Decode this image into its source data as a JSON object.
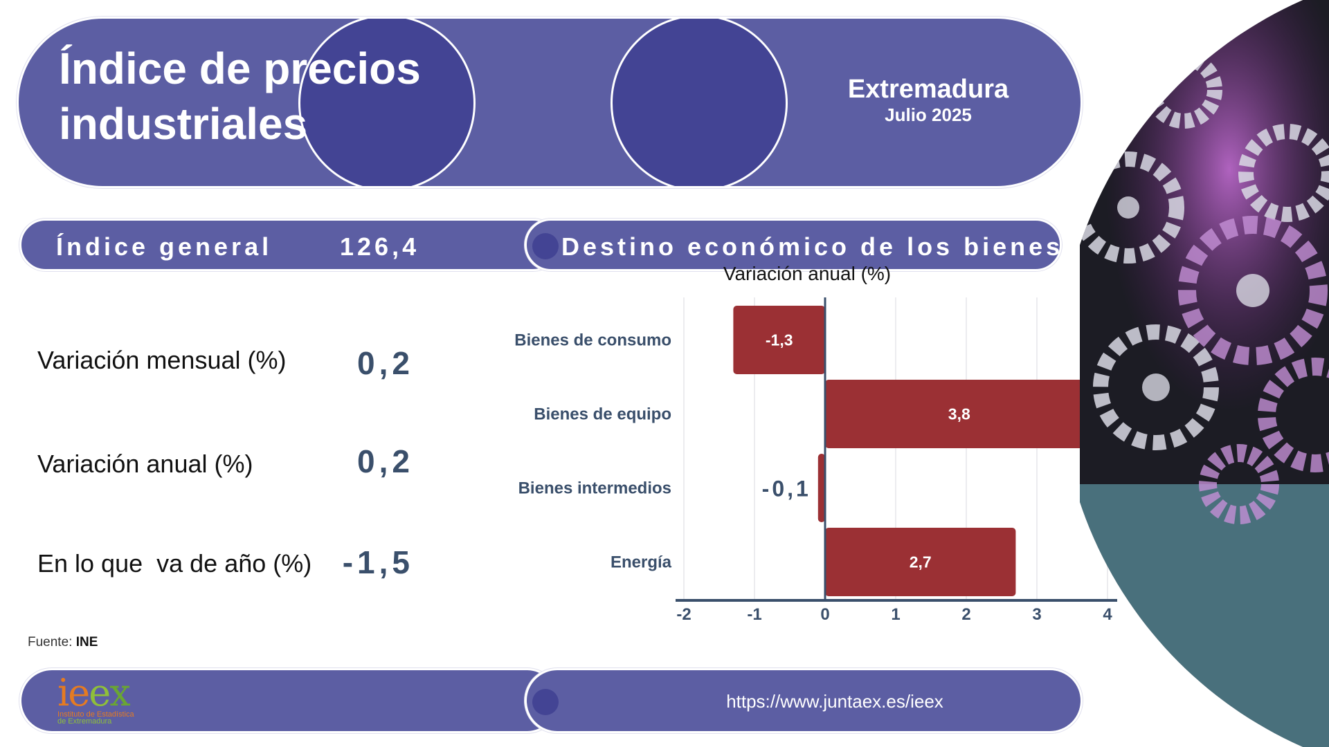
{
  "header": {
    "title_line1": "Índice de precios",
    "title_line2": "industriales",
    "region": "Extremadura",
    "date": "Julio 2025"
  },
  "indice": {
    "label": "Índice general",
    "value": "126,4"
  },
  "kpis": [
    {
      "label": "Variación mensual (%)",
      "value": "0,2"
    },
    {
      "label": "Variación anual (%)",
      "value": "0,2"
    },
    {
      "label": "En lo que  va de año (%)",
      "value": "-1,5"
    }
  ],
  "chart_section": {
    "heading": "Destino económico de los bienes"
  },
  "chart_data": {
    "type": "bar",
    "orientation": "horizontal",
    "title": "Variación anual (%)",
    "categories": [
      "Bienes de consumo",
      "Bienes de equipo",
      "Bienes intermedios",
      "Energía"
    ],
    "values": [
      -1.3,
      3.8,
      -0.1,
      2.7
    ],
    "data_labels": [
      "-1,3",
      "3,8",
      "-0,1",
      "2,7"
    ],
    "xlim": [
      -2,
      4
    ],
    "x_ticks": [
      "-2",
      "-1",
      "0",
      "1",
      "2",
      "3",
      "4"
    ],
    "grid": true,
    "bar_color": "#9b3034"
  },
  "source": {
    "prefix": "Fuente:",
    "name": "INE"
  },
  "footer": {
    "url": "https://www.juntaex.es/ieex",
    "logo_word_i": "i",
    "logo_word_e1": "e",
    "logo_word_e2": "e",
    "logo_word_x": "x",
    "logo_line1": "Instituto de Estadística",
    "logo_line2": "de Extremadura"
  },
  "colors": {
    "pill": "#5c5ea3",
    "pill_dark": "#434494",
    "value_text": "#3a4f6b"
  }
}
